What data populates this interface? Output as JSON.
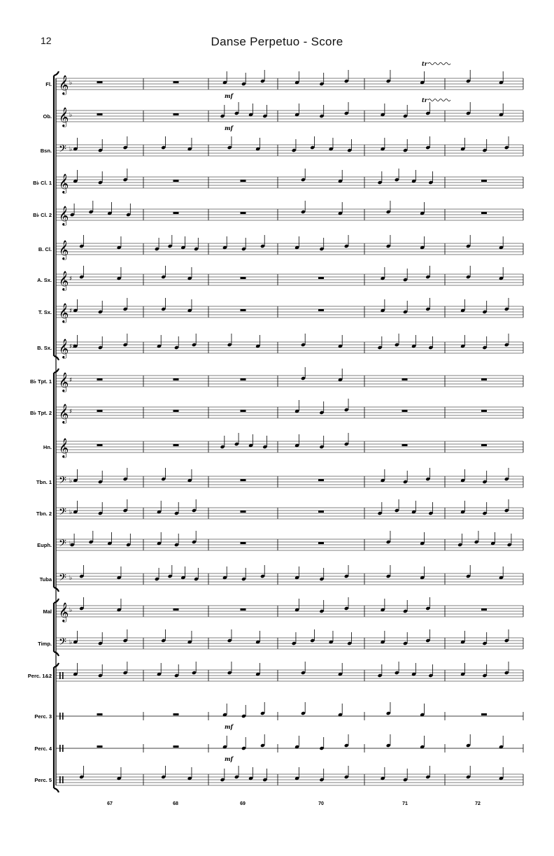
{
  "page": {
    "number": "12",
    "title": "Danse Perpetuo - Score"
  },
  "instruments": [
    {
      "label": "Fl.",
      "clef": "treble",
      "key": "b"
    },
    {
      "label": "Ob.",
      "clef": "treble",
      "key": "b"
    },
    {
      "label": "Bsn.",
      "clef": "bass",
      "key": "b"
    },
    {
      "label": "B♭ Cl. 1",
      "clef": "treble",
      "key": ""
    },
    {
      "label": "B♭ Cl. 2",
      "clef": "treble",
      "key": ""
    },
    {
      "label": "B. Cl.",
      "clef": "treble",
      "key": ""
    },
    {
      "label": "A. Sx.",
      "clef": "treble",
      "key": "#"
    },
    {
      "label": "T. Sx.",
      "clef": "treble",
      "key": "#"
    },
    {
      "label": "B. Sx.",
      "clef": "treble",
      "key": "##"
    },
    {
      "label": "B♭ Tpt. 1",
      "clef": "treble",
      "key": "#"
    },
    {
      "label": "B♭ Tpt. 2",
      "clef": "treble",
      "key": "#"
    },
    {
      "label": "Hn.",
      "clef": "treble",
      "key": ""
    },
    {
      "label": "Tbn. 1",
      "clef": "bass",
      "key": "b"
    },
    {
      "label": "Tbn. 2",
      "clef": "bass",
      "key": "b"
    },
    {
      "label": "Euph.",
      "clef": "bass",
      "key": "b"
    },
    {
      "label": "Tuba",
      "clef": "bass",
      "key": "b"
    },
    {
      "label": "Mal",
      "clef": "treble",
      "key": "b"
    },
    {
      "label": "Timp.",
      "clef": "bass",
      "key": "b"
    },
    {
      "label": "Perc. 1&2",
      "clef": "perc",
      "key": ""
    },
    {
      "label": "Perc. 3",
      "clef": "perc1",
      "key": ""
    },
    {
      "label": "Perc. 4",
      "clef": "perc1",
      "key": ""
    },
    {
      "label": "Perc. 5",
      "clef": "perc",
      "key": ""
    }
  ],
  "measures": [
    "67",
    "68",
    "69",
    "70",
    "71",
    "72"
  ],
  "dynamics": [
    "mf",
    "mf",
    "mf",
    "mf"
  ],
  "ornaments": [
    "tr",
    "tr"
  ]
}
